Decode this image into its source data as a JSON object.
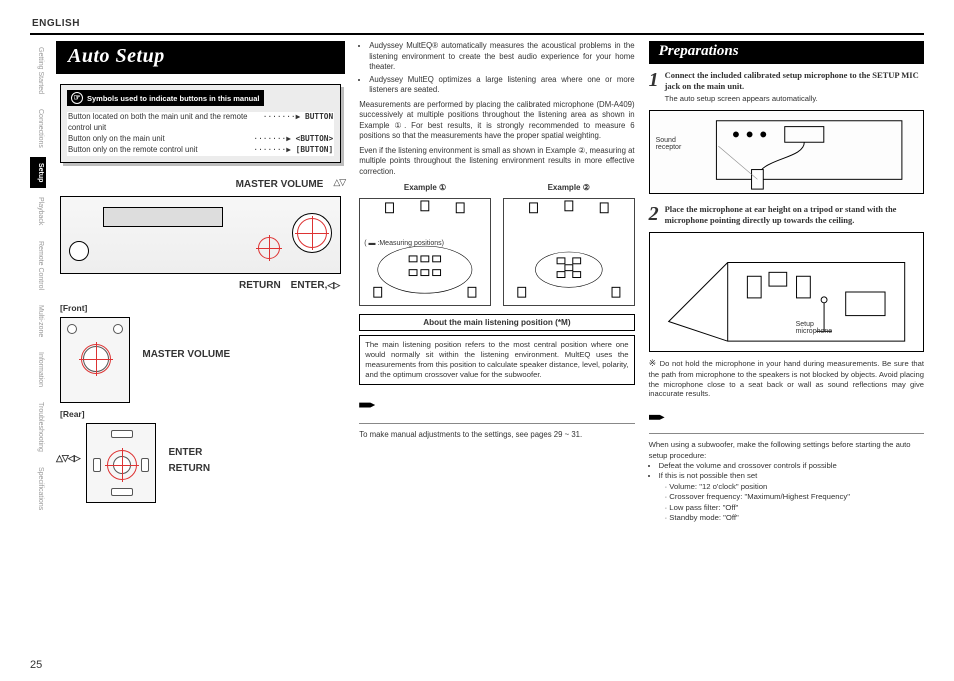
{
  "language": "ENGLISH",
  "page_number": "25",
  "title": "Auto Setup",
  "side_tabs": [
    {
      "label": "Getting Started",
      "active": false
    },
    {
      "label": "Connections",
      "active": false
    },
    {
      "label": "Setup",
      "active": true
    },
    {
      "label": "Playback",
      "active": false
    },
    {
      "label": "Remote Control",
      "active": false
    },
    {
      "label": "Multi-zone",
      "active": false
    },
    {
      "label": "Information",
      "active": false
    },
    {
      "label": "Troubleshooting",
      "active": false
    },
    {
      "label": "Specifications",
      "active": false
    }
  ],
  "legend": {
    "heading": "Symbols used to indicate buttons in this manual",
    "rows": [
      {
        "desc": "Button located on both the main unit and the remote control unit",
        "tag": "BUTTON"
      },
      {
        "desc": "Button only on the main unit",
        "tag": "<BUTTON>"
      },
      {
        "desc": "Button only on the remote control unit",
        "tag": "[BUTTON]"
      }
    ]
  },
  "col1": {
    "master_volume": "MASTER VOLUME",
    "return": "RETURN",
    "enter": "ENTER,",
    "front": "[Front]",
    "rear": "[Rear]",
    "mv2": "MASTER VOLUME",
    "enter2": "ENTER",
    "return2": "RETURN",
    "tri_updown": "△▽",
    "tri_lr": "◁▷",
    "tri_all": "△▽◁▷"
  },
  "col2": {
    "bullets": [
      "Audyssey MultEQ® automatically measures the acoustical problems in the listening environment to create the best audio experience for your home theater.",
      "Audyssey MultEQ optimizes a large listening area where one or more listeners are seated."
    ],
    "para1": "Measurements are performed by placing the calibrated microphone (DM-A409) successively at multiple positions throughout the listening area as shown in Example ①. For best results, it is strongly recommended to measure 6 positions so that the measurements have the proper spatial weighting.",
    "para2": "Even if the listening environment is small as shown in Example ②, measuring at multiple points throughout the listening environment results in more effective correction.",
    "ex1": "Example ①",
    "ex2": "Example ②",
    "meas_pos": "( ▬ :Measuring positions)",
    "about_title": "About the main listening position (*M)",
    "about_body": "The main listening position refers to the most central position where one would normally sit within the listening environment.\nMultEQ uses the measurements from this position to calculate speaker distance, level, polarity, and the optimum crossover value for the subwoofer.",
    "footnote": "To make manual adjustments to the settings, see pages 29 ~ 31."
  },
  "col3": {
    "prep_title": "Preparations",
    "step1": {
      "num": "1",
      "text": "Connect the included calibrated setup microphone to the SETUP MIC jack on the main unit.",
      "sub": "The auto setup screen appears automatically."
    },
    "sound_receptor": "Sound\nreceptor",
    "step2": {
      "num": "2",
      "text": "Place the microphone at ear height on a tripod or stand with the microphone pointing directly up towards the ceiling."
    },
    "setup_mic": "Setup\nmicrophone",
    "caution": "Do not hold the microphone in your hand during measurements. Be sure that the path from microphone to the speakers is not blocked by objects. Avoid placing the microphone close to a seat back or wall as sound reflections may give inaccurate results.",
    "caution_mark": "※",
    "sub_intro": "When using a subwoofer, make the following settings before starting the auto setup procedure:",
    "sub_b1": "Defeat the volume and crossover controls if possible",
    "sub_b2": "If this is not possible then set",
    "sub_b2a": "Volume: \"12 o'clock\" position",
    "sub_b2b": "Crossover frequency: \"Maximum/Highest Frequency\"",
    "sub_b2c": "Low pass filter: \"Off\"",
    "sub_b2d": "Standby mode: \"Off\""
  }
}
